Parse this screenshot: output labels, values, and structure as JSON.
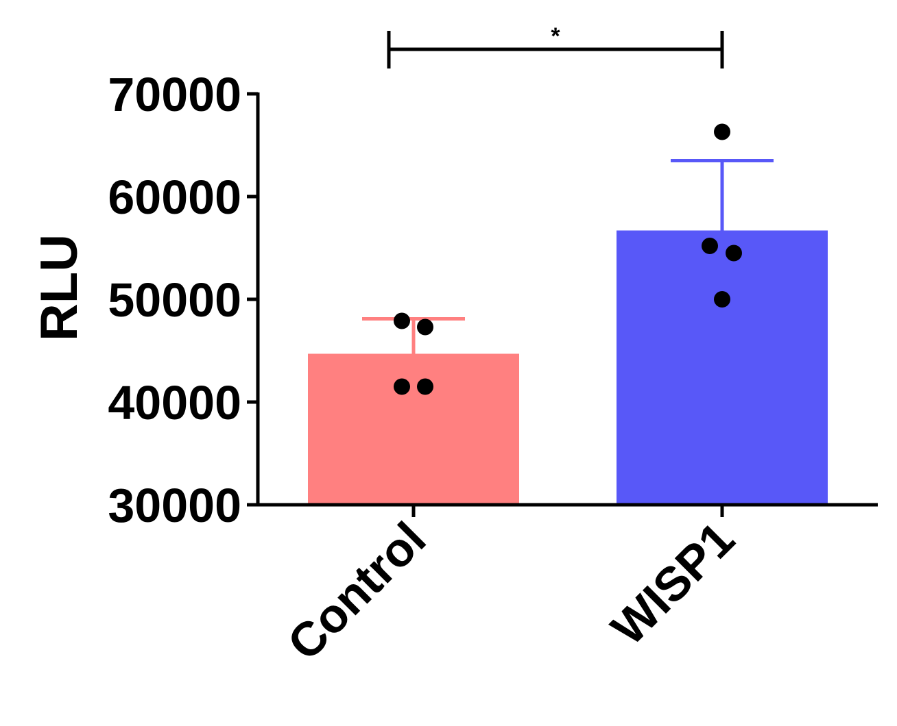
{
  "chart_data": {
    "type": "bar",
    "title": "",
    "xlabel": "",
    "ylabel": "RLU",
    "ylim": [
      30000,
      70000
    ],
    "yticks": [
      30000,
      40000,
      50000,
      60000,
      70000
    ],
    "yticklabels": [
      "30000",
      "40000",
      "50000",
      "60000",
      "70000"
    ],
    "categories": [
      "Control",
      "WISP1"
    ],
    "values": [
      44700,
      56700
    ],
    "error_upper": [
      48100,
      63500
    ],
    "points": [
      [
        47900,
        47300,
        41500,
        41500
      ],
      [
        66300,
        55200,
        54500,
        50000
      ]
    ],
    "colors": [
      "#ff8080",
      "#5858f8"
    ],
    "significance": {
      "from": "Control",
      "to": "WISP1",
      "label": "*"
    },
    "grid": false,
    "legend": "none"
  }
}
